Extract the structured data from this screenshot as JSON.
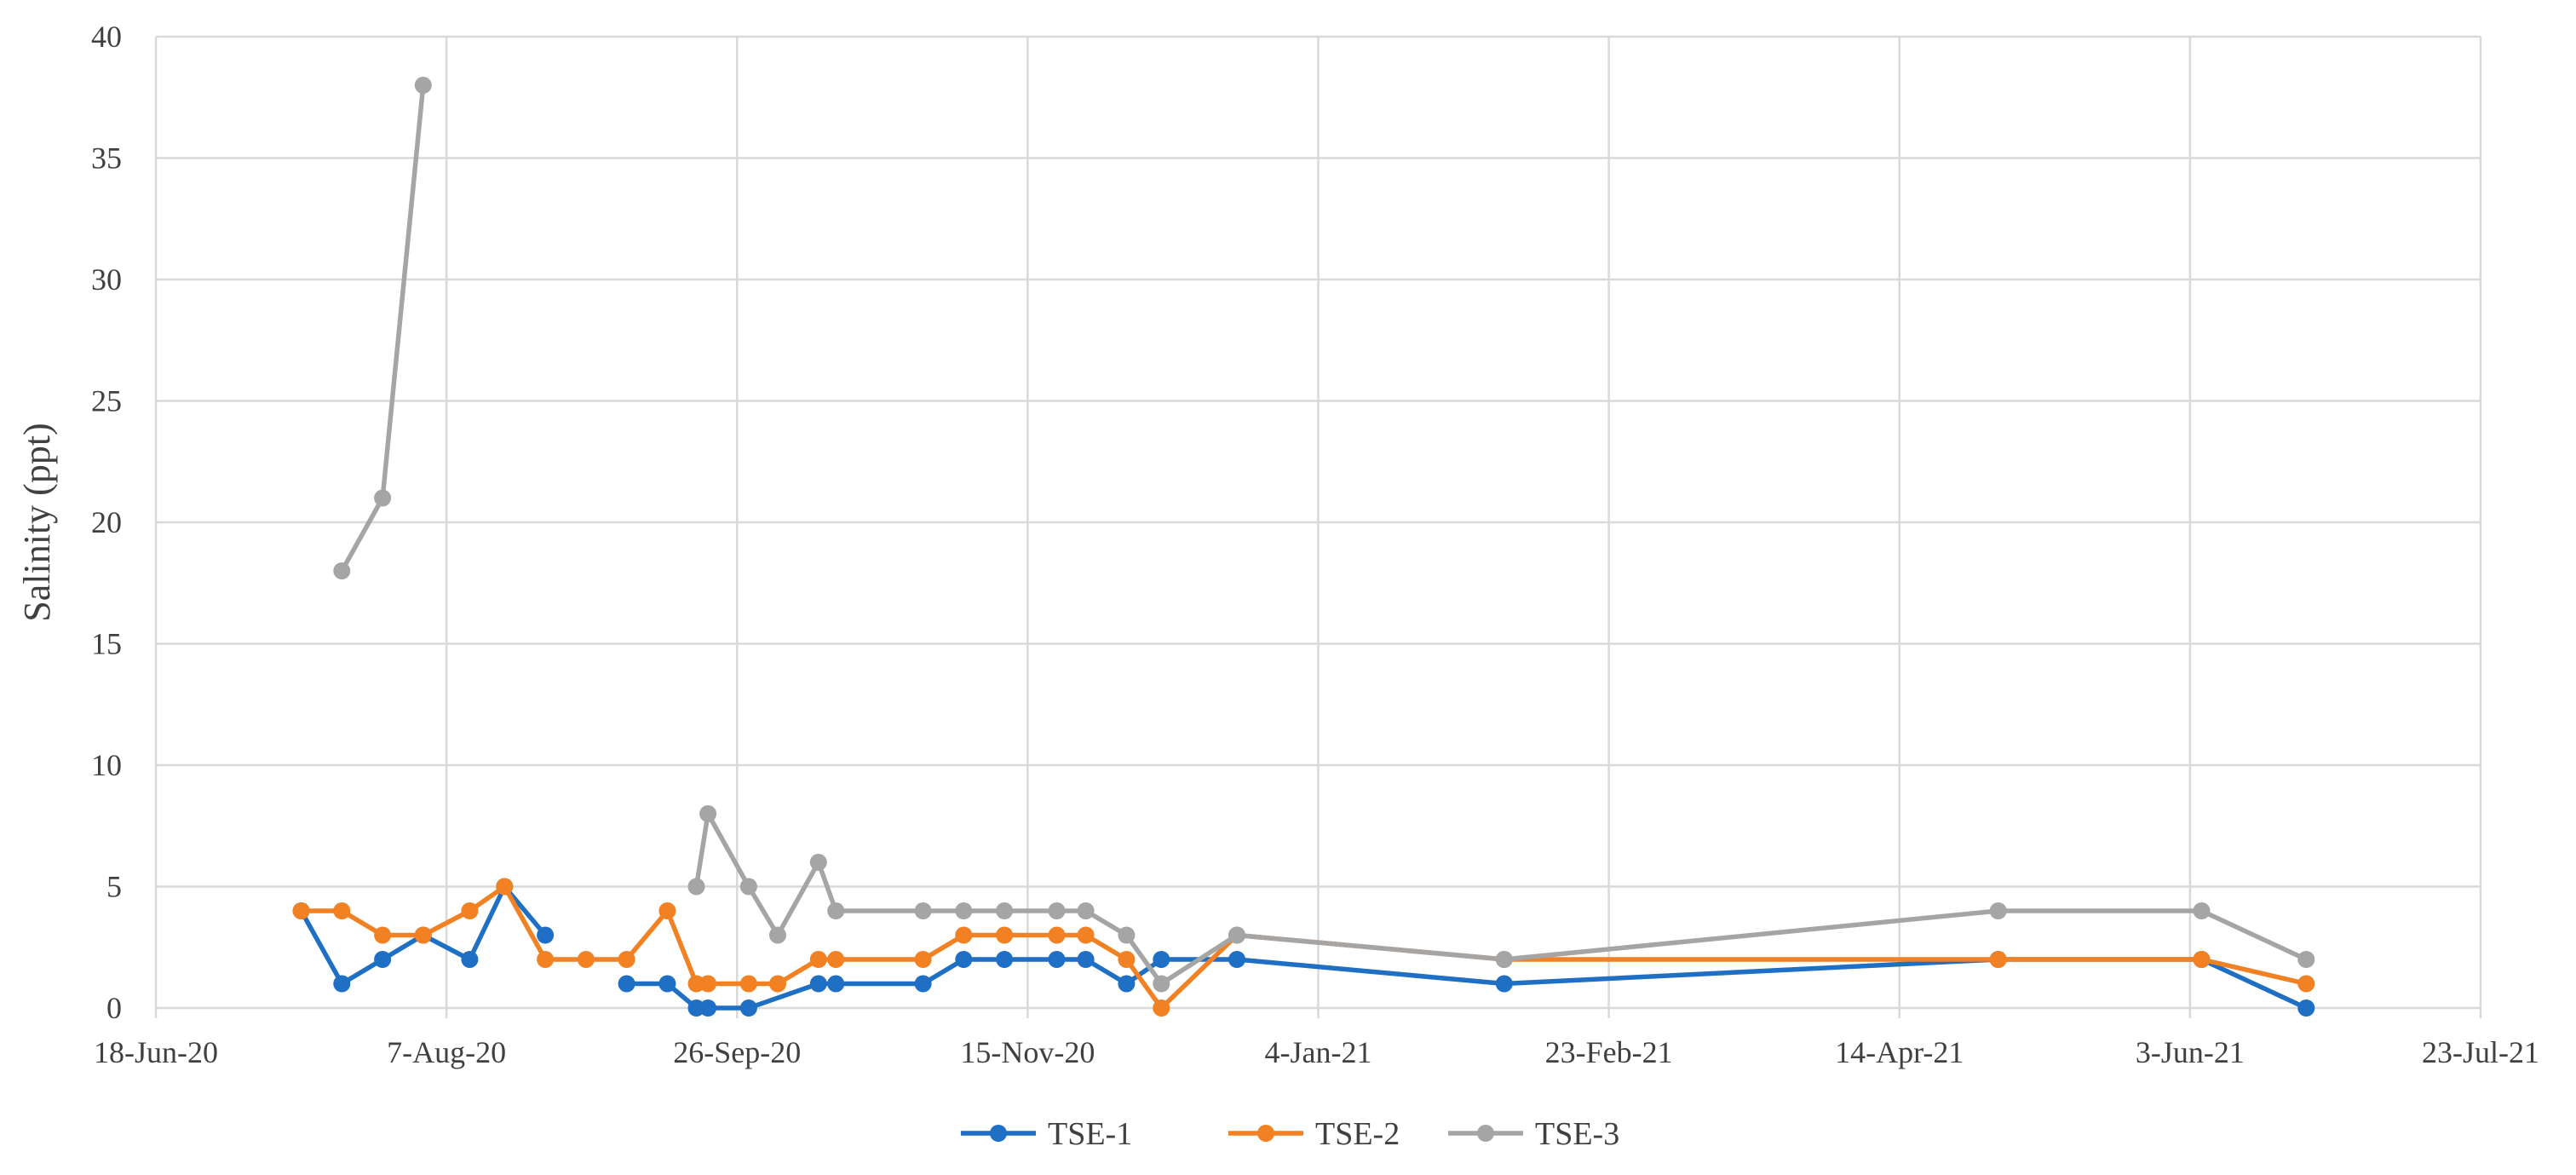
{
  "chart_data": {
    "type": "line",
    "title": "",
    "xlabel": "",
    "ylabel": "Salinity (ppt)",
    "xlim": [
      "2020-06-18",
      "2021-07-23"
    ],
    "ylim": [
      0,
      40
    ],
    "x_ticks": [
      "18-Jun-20",
      "7-Aug-20",
      "26-Sep-20",
      "15-Nov-20",
      "4-Jan-21",
      "23-Feb-21",
      "14-Apr-21",
      "3-Jun-21",
      "23-Jul-21"
    ],
    "y_ticks": [
      0,
      5,
      10,
      15,
      20,
      25,
      30,
      35,
      40
    ],
    "grid": true,
    "legend": "bottom",
    "series": [
      {
        "name": "TSE-1",
        "color": "#1f6fc5",
        "segments": [
          [
            {
              "x": "2020-07-13",
              "y": 4
            },
            {
              "x": "2020-07-20",
              "y": 1
            },
            {
              "x": "2020-07-27",
              "y": 2
            },
            {
              "x": "2020-08-03",
              "y": 3
            },
            {
              "x": "2020-08-11",
              "y": 2
            },
            {
              "x": "2020-08-17",
              "y": 5
            },
            {
              "x": "2020-08-24",
              "y": 3
            }
          ],
          [
            {
              "x": "2020-09-07",
              "y": 1
            },
            {
              "x": "2020-09-14",
              "y": 1
            },
            {
              "x": "2020-09-19",
              "y": 0
            },
            {
              "x": "2020-09-21",
              "y": 0
            },
            {
              "x": "2020-09-28",
              "y": 0
            },
            {
              "x": "2020-10-10",
              "y": 1
            },
            {
              "x": "2020-10-13",
              "y": 1
            },
            {
              "x": "2020-10-28",
              "y": 1
            },
            {
              "x": "2020-11-04",
              "y": 2
            },
            {
              "x": "2020-11-11",
              "y": 2
            },
            {
              "x": "2020-11-20",
              "y": 2
            },
            {
              "x": "2020-11-25",
              "y": 2
            },
            {
              "x": "2020-12-02",
              "y": 1
            },
            {
              "x": "2020-12-08",
              "y": 2
            },
            {
              "x": "2020-12-21",
              "y": 2
            },
            {
              "x": "2021-02-05",
              "y": 1
            },
            {
              "x": "2021-05-01",
              "y": 2
            },
            {
              "x": "2021-06-05",
              "y": 2
            },
            {
              "x": "2021-06-23",
              "y": 0
            }
          ]
        ]
      },
      {
        "name": "TSE-2",
        "color": "#f28123",
        "segments": [
          [
            {
              "x": "2020-07-13",
              "y": 4
            },
            {
              "x": "2020-07-20",
              "y": 4
            },
            {
              "x": "2020-07-27",
              "y": 3
            },
            {
              "x": "2020-08-03",
              "y": 3
            },
            {
              "x": "2020-08-11",
              "y": 4
            },
            {
              "x": "2020-08-17",
              "y": 5
            },
            {
              "x": "2020-08-24",
              "y": 2
            },
            {
              "x": "2020-08-31",
              "y": 2
            },
            {
              "x": "2020-09-07",
              "y": 2
            },
            {
              "x": "2020-09-14",
              "y": 4
            },
            {
              "x": "2020-09-19",
              "y": 1
            },
            {
              "x": "2020-09-21",
              "y": 1
            },
            {
              "x": "2020-09-28",
              "y": 1
            },
            {
              "x": "2020-10-03",
              "y": 1
            },
            {
              "x": "2020-10-10",
              "y": 2
            },
            {
              "x": "2020-10-13",
              "y": 2
            },
            {
              "x": "2020-10-28",
              "y": 2
            },
            {
              "x": "2020-11-04",
              "y": 3
            },
            {
              "x": "2020-11-11",
              "y": 3
            },
            {
              "x": "2020-11-20",
              "y": 3
            },
            {
              "x": "2020-11-25",
              "y": 3
            },
            {
              "x": "2020-12-02",
              "y": 2
            },
            {
              "x": "2020-12-08",
              "y": 0
            },
            {
              "x": "2020-12-21",
              "y": 3
            },
            {
              "x": "2021-02-05",
              "y": 2
            },
            {
              "x": "2021-05-01",
              "y": 2
            },
            {
              "x": "2021-06-05",
              "y": 2
            },
            {
              "x": "2021-06-23",
              "y": 1
            }
          ]
        ]
      },
      {
        "name": "TSE-3",
        "color": "#a5a5a5",
        "segments": [
          [
            {
              "x": "2020-07-20",
              "y": 18
            },
            {
              "x": "2020-07-27",
              "y": 21
            },
            {
              "x": "2020-08-03",
              "y": 38
            }
          ],
          [
            {
              "x": "2020-09-19",
              "y": 5
            },
            {
              "x": "2020-09-21",
              "y": 8
            },
            {
              "x": "2020-09-28",
              "y": 5
            },
            {
              "x": "2020-10-03",
              "y": 3
            },
            {
              "x": "2020-10-10",
              "y": 6
            },
            {
              "x": "2020-10-13",
              "y": 4
            },
            {
              "x": "2020-10-28",
              "y": 4
            },
            {
              "x": "2020-11-04",
              "y": 4
            },
            {
              "x": "2020-11-11",
              "y": 4
            },
            {
              "x": "2020-11-20",
              "y": 4
            },
            {
              "x": "2020-11-25",
              "y": 4
            },
            {
              "x": "2020-12-02",
              "y": 3
            },
            {
              "x": "2020-12-08",
              "y": 1
            },
            {
              "x": "2020-12-21",
              "y": 3
            },
            {
              "x": "2021-02-05",
              "y": 2
            },
            {
              "x": "2021-05-01",
              "y": 4
            },
            {
              "x": "2021-06-05",
              "y": 4
            },
            {
              "x": "2021-06-23",
              "y": 2
            }
          ]
        ]
      }
    ]
  }
}
